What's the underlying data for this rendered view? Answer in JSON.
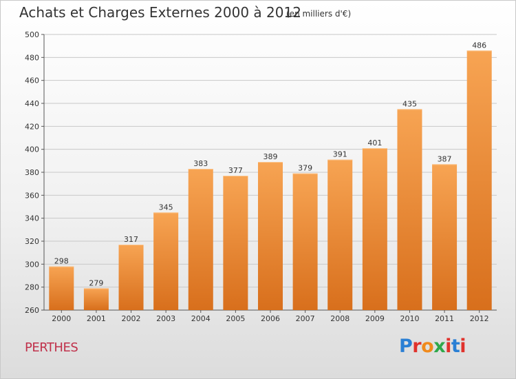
{
  "header": {
    "title": "Achats et Charges Externes 2000 à 2012",
    "subtitle": "(en milliers d'€)"
  },
  "footer": {
    "location": "PERTHES",
    "logo_text": "Proxiti",
    "logo_colors": [
      "#2a7fd4",
      "#e0322c",
      "#f08a1c",
      "#2fa84a",
      "#e0322c",
      "#2a7fd4",
      "#e0322c"
    ]
  },
  "colors": {
    "bar_top": "#f7a453",
    "bar_bottom": "#d86f1c",
    "grid": "#c8c8c8",
    "axis": "#555555"
  },
  "chart_data": {
    "type": "bar",
    "categories": [
      "2000",
      "2001",
      "2002",
      "2003",
      "2004",
      "2005",
      "2006",
      "2007",
      "2008",
      "2009",
      "2010",
      "2011",
      "2012"
    ],
    "values": [
      298,
      279,
      317,
      345,
      383,
      377,
      389,
      379,
      391,
      401,
      435,
      387,
      486
    ],
    "data_labels": [
      "298",
      "279",
      "317",
      "345",
      "383",
      "377",
      "389",
      "379",
      "391",
      "401",
      "435",
      "387",
      "486"
    ],
    "ylim": [
      260,
      500
    ],
    "yticks": [
      260,
      280,
      300,
      320,
      340,
      360,
      380,
      400,
      420,
      440,
      460,
      480,
      500
    ],
    "ytick_labels": [
      "260",
      "280",
      "300",
      "320",
      "340",
      "360",
      "380",
      "400",
      "420",
      "440",
      "460",
      "480",
      "500"
    ],
    "grid": true,
    "xlabel": "",
    "ylabel": ""
  }
}
